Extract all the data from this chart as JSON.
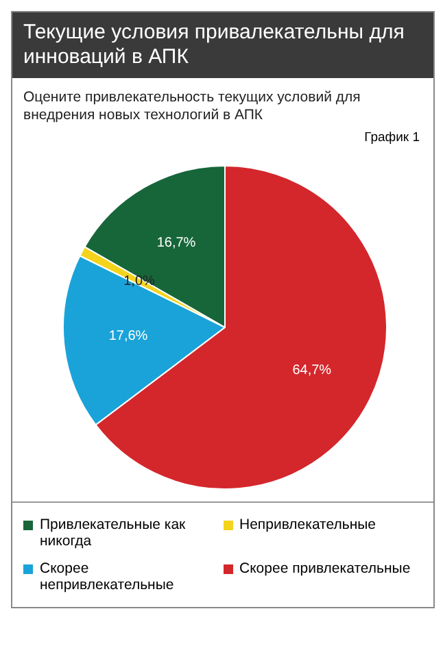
{
  "chart_data": {
    "type": "pie",
    "title": "Текущие условия привалекательны для инноваций в АПК",
    "subtitle": "Оцените привлекательность текущих условий для внедрения новых технологий в АПК",
    "annotations": [
      "График 1"
    ],
    "categories": [
      "Привлекательные как никогда",
      "Непривлекательные",
      "Скорее непривлекательные",
      "Скорее привлекательные"
    ],
    "values": [
      16.7,
      1.0,
      17.6,
      64.7
    ],
    "value_labels": [
      "16,7%",
      "1,0%",
      "17,6%",
      "64,7%"
    ],
    "colors": [
      "#17663a",
      "#f4d31c",
      "#1aa3d8",
      "#d3272c"
    ],
    "legend": "bottom"
  }
}
